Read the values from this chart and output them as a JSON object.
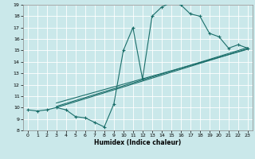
{
  "xlabel": "Humidex (Indice chaleur)",
  "xlim": [
    -0.5,
    23.5
  ],
  "ylim": [
    8,
    19
  ],
  "xticks": [
    0,
    1,
    2,
    3,
    4,
    5,
    6,
    7,
    8,
    9,
    10,
    11,
    12,
    13,
    14,
    15,
    16,
    17,
    18,
    19,
    20,
    21,
    22,
    23
  ],
  "yticks": [
    8,
    9,
    10,
    11,
    12,
    13,
    14,
    15,
    16,
    17,
    18,
    19
  ],
  "bg_color": "#cae8ea",
  "line_color": "#1a6e6a",
  "main_line_x": [
    0,
    1,
    2,
    3,
    4,
    5,
    6,
    7,
    8,
    9,
    10,
    11,
    12,
    13,
    14,
    15,
    16,
    17,
    18,
    19,
    20,
    21,
    22,
    23
  ],
  "main_line_y": [
    9.8,
    9.7,
    9.8,
    10.0,
    9.8,
    9.2,
    9.1,
    8.7,
    8.3,
    10.3,
    15.0,
    17.0,
    12.5,
    18.0,
    18.8,
    19.2,
    19.0,
    18.2,
    18.0,
    16.5,
    16.2,
    15.2,
    15.5,
    15.2
  ],
  "reg_line1": [
    [
      3,
      23
    ],
    [
      10.0,
      15.15
    ]
  ],
  "reg_line2": [
    [
      3,
      23
    ],
    [
      10.1,
      15.25
    ]
  ],
  "reg_line3": [
    [
      3,
      23
    ],
    [
      10.4,
      15.1
    ]
  ]
}
